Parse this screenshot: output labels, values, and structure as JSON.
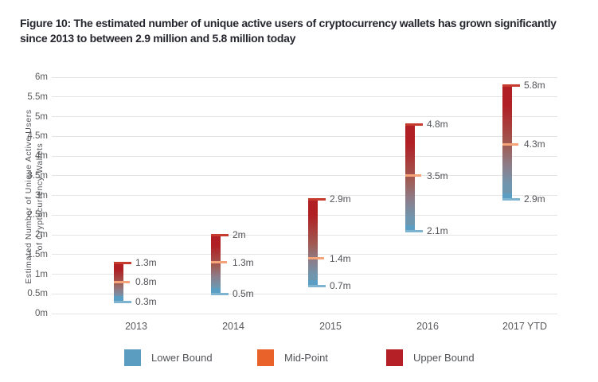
{
  "figure": {
    "title_full": "Figure 10: The estimated number of unique active users of cryptocurrency wallets has grown significantly since 2013 to between 2.9 million and 5.8 million today",
    "title_lines": [
      "Figure 10: The estimated number of unique active users of cryptocurrency wallets has grown significantly",
      "since 2013 to between 2.9 million and 5.8 million today"
    ]
  },
  "chart_data": {
    "type": "bar",
    "subtype": "floating_range_bar",
    "title": "Figure 10: The estimated number of unique active users of cryptocurrency wallets has grown significantly since 2013 to between 2.9 million and 5.8 million today",
    "categories": [
      "2013",
      "2014",
      "2015",
      "2016",
      "2017 YTD"
    ],
    "series": [
      {
        "name": "Lower Bound",
        "values": [
          0.3,
          0.5,
          0.7,
          2.1,
          2.9
        ],
        "color": "#5b9dc0"
      },
      {
        "name": "Mid-Point",
        "values": [
          0.8,
          1.3,
          1.4,
          3.5,
          4.3
        ],
        "color": "#e8622a"
      },
      {
        "name": "Upper Bound",
        "values": [
          1.3,
          2.0,
          2.9,
          4.8,
          5.8
        ],
        "color": "#b42025"
      }
    ],
    "point_labels": {
      "lower": [
        "0.3m",
        "0.5m",
        "0.7m",
        "2.1m",
        "2.9m"
      ],
      "mid": [
        "0.8m",
        "1.3m",
        "1.4m",
        "3.5m",
        "4.3m"
      ],
      "upper": [
        "1.3m",
        "2m",
        "2.9m",
        "4.8m",
        "5.8m"
      ]
    },
    "xlabel": "",
    "ylabel": "Estimated Number of Unique Active Users of Cryptocurrency Wallets",
    "ylabel_lines": [
      "Estimated Number of Unique Active Users",
      "of Cryptocurrency Wallets"
    ],
    "ylim": [
      0,
      6
    ],
    "ytick_step": 0.5,
    "yticks": [
      {
        "value": 0,
        "label": "0m"
      },
      {
        "value": 0.5,
        "label": "0.5m"
      },
      {
        "value": 1,
        "label": "1m"
      },
      {
        "value": 1.5,
        "label": "1.5m"
      },
      {
        "value": 2,
        "label": "2m"
      },
      {
        "value": 2.5,
        "label": "2.5m"
      },
      {
        "value": 3,
        "label": "3m"
      },
      {
        "value": 3.5,
        "label": "3.5m"
      },
      {
        "value": 4,
        "label": "4m"
      },
      {
        "value": 4.5,
        "label": "4.5m"
      },
      {
        "value": 5,
        "label": "5m"
      },
      {
        "value": 5.5,
        "label": "5.5m"
      },
      {
        "value": 6,
        "label": "6m"
      }
    ],
    "grid": true,
    "legend": {
      "position": "bottom",
      "items": [
        {
          "label": "Lower Bound",
          "color": "#5b9dc0"
        },
        {
          "label": "Mid-Point",
          "color": "#e8622a"
        },
        {
          "label": "Upper Bound",
          "color": "#b42025"
        }
      ]
    },
    "colors": {
      "bar_gradient_top": "#b01f24",
      "bar_gradient_mid": "#a05a52",
      "bar_gradient_low": "#6f96af",
      "bar_cap_bottom": "#5b9ec3",
      "tick_upper": "#c63b2e",
      "tick_mid": "#f4a478",
      "tick_lower": "#7fb4d1",
      "gridline": "#e4e4e4"
    }
  }
}
